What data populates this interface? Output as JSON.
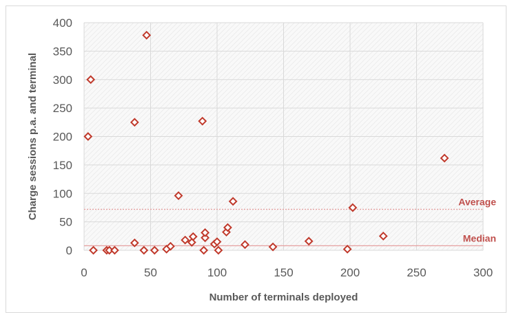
{
  "chart_data": {
    "type": "scatter",
    "title": "",
    "xlabel": "Number of terminals deployed",
    "ylabel": "Charge sessions p.a. and terminal",
    "xlim": [
      0,
      300
    ],
    "ylim": [
      0,
      400
    ],
    "xticks": [
      "0",
      "50",
      "100",
      "150",
      "200",
      "250",
      "300"
    ],
    "yticks": [
      "0",
      "50",
      "100",
      "150",
      "200",
      "250",
      "300",
      "350",
      "400"
    ],
    "grid": true,
    "marker": "hollow-diamond",
    "marker_color": "#c0392b",
    "reference_lines": [
      {
        "name": "Average",
        "y": 72,
        "style": "dotted",
        "color": "#e6a0a0"
      },
      {
        "name": "Median",
        "y": 8,
        "style": "solid",
        "color": "#e6a0a0"
      }
    ],
    "points": [
      {
        "x": 3,
        "y": 200
      },
      {
        "x": 5,
        "y": 300
      },
      {
        "x": 7,
        "y": 0
      },
      {
        "x": 17,
        "y": 0
      },
      {
        "x": 19,
        "y": 0
      },
      {
        "x": 23,
        "y": 0
      },
      {
        "x": 38,
        "y": 225
      },
      {
        "x": 38,
        "y": 13
      },
      {
        "x": 45,
        "y": 0
      },
      {
        "x": 47,
        "y": 378
      },
      {
        "x": 53,
        "y": 0
      },
      {
        "x": 62,
        "y": 2
      },
      {
        "x": 65,
        "y": 7
      },
      {
        "x": 71,
        "y": 96
      },
      {
        "x": 76,
        "y": 18
      },
      {
        "x": 81,
        "y": 14
      },
      {
        "x": 82,
        "y": 24
      },
      {
        "x": 89,
        "y": 227
      },
      {
        "x": 90,
        "y": 0
      },
      {
        "x": 91,
        "y": 22
      },
      {
        "x": 91,
        "y": 31
      },
      {
        "x": 98,
        "y": 11
      },
      {
        "x": 100,
        "y": 15
      },
      {
        "x": 101,
        "y": 0
      },
      {
        "x": 107,
        "y": 32
      },
      {
        "x": 108,
        "y": 40
      },
      {
        "x": 112,
        "y": 86
      },
      {
        "x": 121,
        "y": 10
      },
      {
        "x": 142,
        "y": 6
      },
      {
        "x": 169,
        "y": 16
      },
      {
        "x": 198,
        "y": 2
      },
      {
        "x": 202,
        "y": 75
      },
      {
        "x": 225,
        "y": 25
      },
      {
        "x": 271,
        "y": 162
      }
    ]
  }
}
